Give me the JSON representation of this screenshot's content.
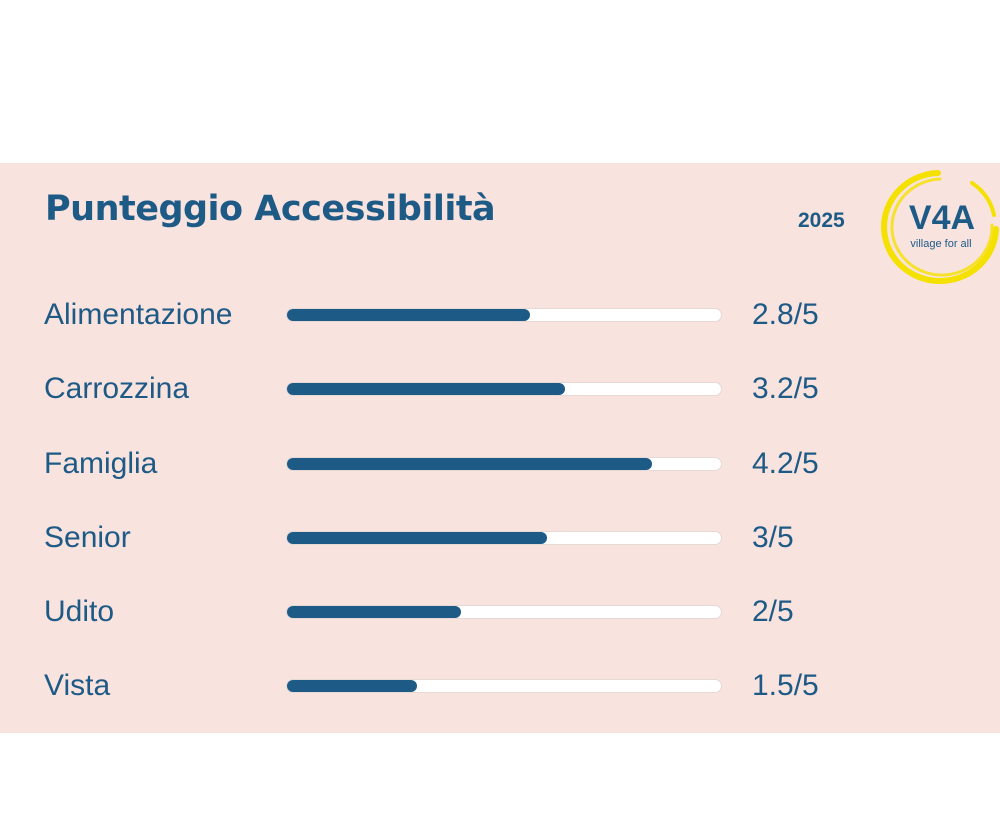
{
  "card": {
    "title": "Punteggio Accessibilità",
    "year": "2025",
    "logo": {
      "mark": "V4A",
      "tagline": "village for all",
      "ring_color": "#f5e100",
      "text_color": "#1e5a86"
    }
  },
  "colors": {
    "panel_background": "#f8e3df",
    "accent": "#1e5a86",
    "track": "#ffffff"
  },
  "scores": [
    {
      "label": "Alimentazione",
      "score": 2.8,
      "max": 5,
      "value_text": "2.8/5"
    },
    {
      "label": "Carrozzina",
      "score": 3.2,
      "max": 5,
      "value_text": "3.2/5"
    },
    {
      "label": "Famiglia",
      "score": 4.2,
      "max": 5,
      "value_text": "4.2/5"
    },
    {
      "label": "Senior",
      "score": 3,
      "max": 5,
      "value_text": "3/5"
    },
    {
      "label": "Udito",
      "score": 2,
      "max": 5,
      "value_text": "2/5"
    },
    {
      "label": "Vista",
      "score": 1.5,
      "max": 5,
      "value_text": "1.5/5"
    }
  ]
}
